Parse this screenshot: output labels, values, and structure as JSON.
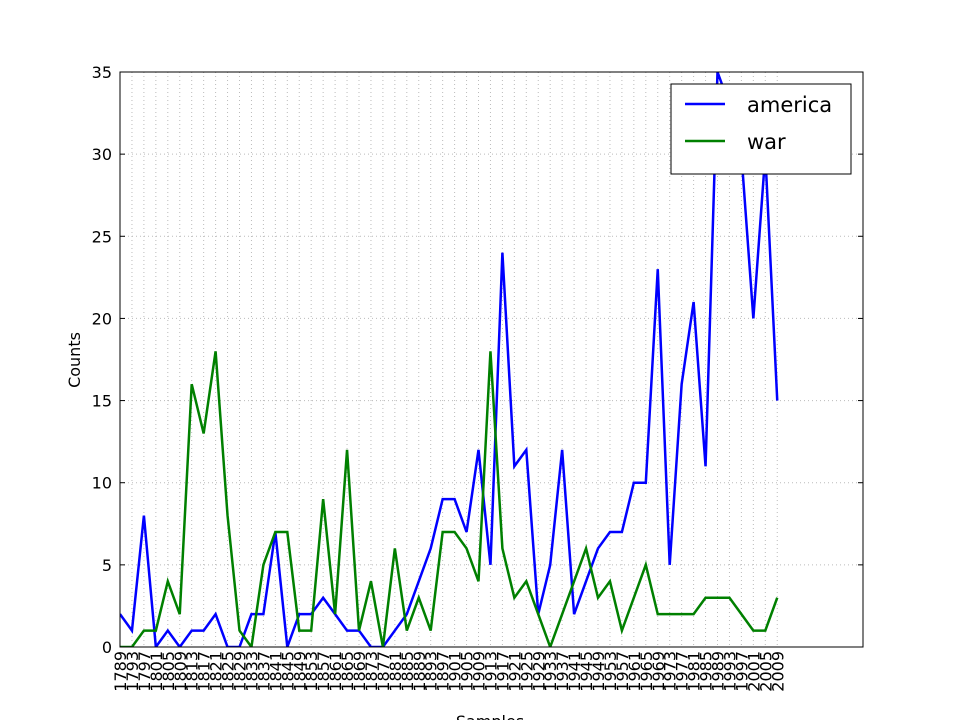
{
  "chart_data": {
    "type": "line",
    "xlabel": "Samples",
    "ylabel": "Counts",
    "categories": [
      "1789",
      "1793",
      "1797",
      "1801",
      "1805",
      "1809",
      "1813",
      "1817",
      "1821",
      "1825",
      "1829",
      "1833",
      "1837",
      "1841",
      "1845",
      "1849",
      "1853",
      "1857",
      "1861",
      "1865",
      "1869",
      "1873",
      "1877",
      "1881",
      "1885",
      "1889",
      "1893",
      "1897",
      "1901",
      "1905",
      "1909",
      "1913",
      "1917",
      "1921",
      "1925",
      "1929",
      "1933",
      "1937",
      "1941",
      "1945",
      "1949",
      "1953",
      "1957",
      "1961",
      "1965",
      "1969",
      "1973",
      "1977",
      "1981",
      "1985",
      "1989",
      "1993",
      "1997",
      "2001",
      "2005",
      "2009"
    ],
    "series": [
      {
        "name": "america",
        "color": "#0000ff",
        "values": [
          2,
          1,
          8,
          0,
          1,
          0,
          1,
          1,
          2,
          0,
          0,
          2,
          2,
          7,
          0,
          2,
          2,
          3,
          2,
          1,
          1,
          0,
          0,
          1,
          2,
          4,
          6,
          9,
          9,
          7,
          12,
          5,
          24,
          11,
          12,
          2,
          5,
          12,
          2,
          4,
          6,
          7,
          7,
          10,
          10,
          23,
          5,
          16,
          21,
          11,
          35,
          33,
          30,
          20,
          30,
          15
        ]
      },
      {
        "name": "war",
        "color": "#008000",
        "values": [
          0,
          0,
          1,
          1,
          4,
          2,
          16,
          13,
          18,
          8,
          1,
          0,
          5,
          7,
          7,
          1,
          1,
          9,
          2,
          12,
          1,
          4,
          0,
          6,
          1,
          3,
          1,
          7,
          7,
          6,
          4,
          18,
          6,
          3,
          4,
          2,
          0,
          2,
          4,
          6,
          3,
          4,
          1,
          3,
          5,
          2,
          2,
          2,
          2,
          3,
          3,
          3,
          2,
          1,
          1,
          3
        ]
      }
    ],
    "ylim": [
      0,
      35
    ],
    "yticks": [
      0,
      5,
      10,
      15,
      20,
      25,
      30,
      35
    ],
    "grid": true,
    "legend": "upper right"
  }
}
